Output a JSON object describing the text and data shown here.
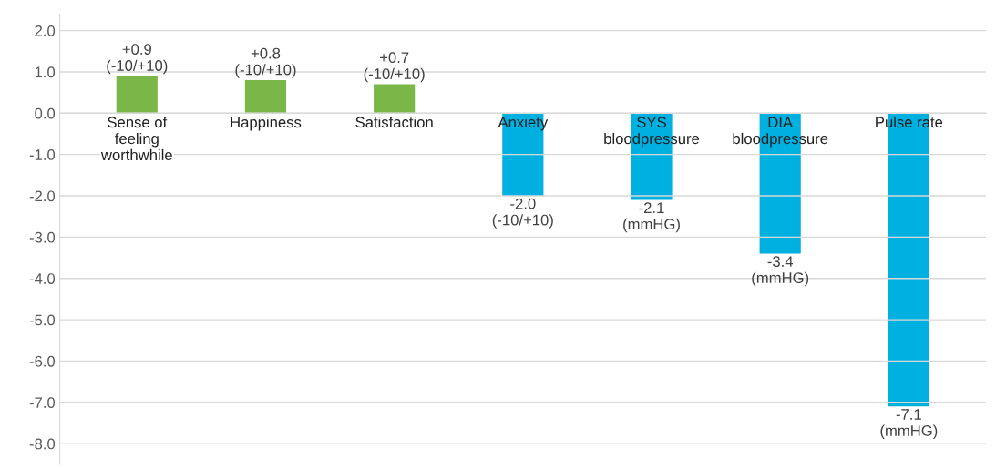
{
  "chart_data": {
    "type": "bar",
    "categories": [
      "Sense of\nfeeling\nworthwhile",
      "Happiness",
      "Satisfaction",
      "Anxiety",
      "SYS\nbloodpressure",
      "DIA\nbloodpressure",
      "Pulse rate"
    ],
    "values": [
      0.9,
      0.8,
      0.7,
      -2.0,
      -2.1,
      -3.4,
      -7.1
    ],
    "colors": [
      "#7ab648",
      "#7ab648",
      "#7ab648",
      "#00b0e0",
      "#00b0e0",
      "#00b0e0",
      "#00b0e0"
    ],
    "value_labels": [
      "+0.9\n(-10/+10)",
      "+0.8\n(-10/+10)",
      "+0.7\n(-10/+10)",
      "-2.0\n(-10/+10)",
      "-2.1\n(mmHG)",
      "-3.4\n(mmHG)",
      "-7.1\n(mmHG)"
    ],
    "ylim": [
      -8.5,
      2.4
    ],
    "yticks": [
      {
        "value": 2,
        "label": "2.0"
      },
      {
        "value": 1,
        "label": "1.0"
      },
      {
        "value": 0,
        "label": "0.0"
      },
      {
        "value": -1,
        "label": "-1.0"
      },
      {
        "value": -2,
        "label": "-2.0"
      },
      {
        "value": -3,
        "label": "-3.0"
      },
      {
        "value": -4,
        "label": "-4.0"
      },
      {
        "value": -5,
        "label": "-5.0"
      },
      {
        "value": -6,
        "label": "-6.0"
      },
      {
        "value": -7,
        "label": "-7.0"
      },
      {
        "value": -8,
        "label": "-8.0"
      }
    ],
    "grid": "y",
    "legend": false
  }
}
